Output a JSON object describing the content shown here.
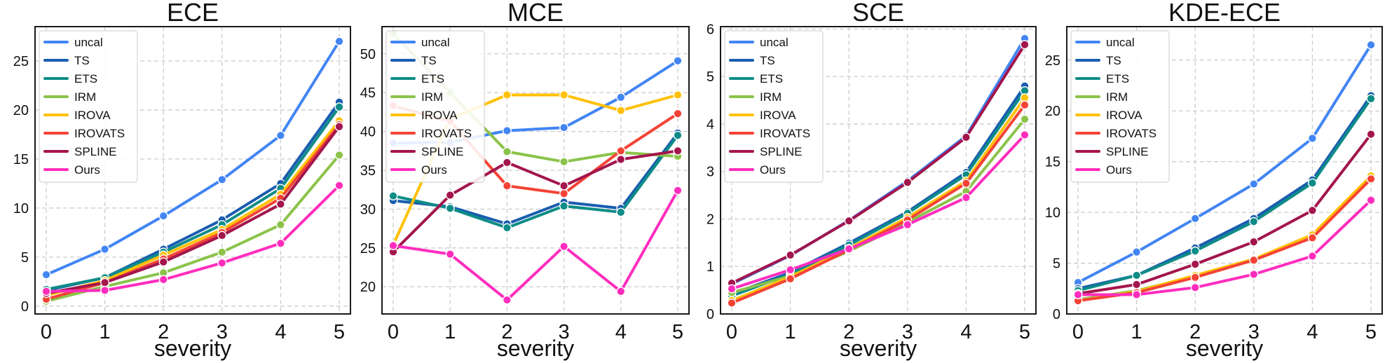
{
  "figure": {
    "series_colors": {
      "uncal": "#4285f4",
      "TS": "#1a5db0",
      "ETS": "#0e8c87",
      "IRM": "#8bc34a",
      "IROVA": "#ffc107",
      "IROVATS": "#f44336",
      "SPLINE": "#a3154d",
      "Ours": "#ff2dbe"
    }
  },
  "chart_data": [
    {
      "type": "line",
      "title": "ECE",
      "xlabel": "severity",
      "ylabel": "",
      "x": [
        0,
        1,
        2,
        3,
        4,
        5
      ],
      "ylim": [
        -0.8,
        28.5
      ],
      "yticks": [
        0,
        5,
        10,
        15,
        20,
        25
      ],
      "legend": "top-left",
      "grid": true,
      "series": [
        {
          "name": "uncal",
          "values": [
            3.2,
            5.8,
            9.2,
            12.9,
            17.4,
            27.0
          ]
        },
        {
          "name": "TS",
          "values": [
            1.6,
            2.9,
            5.8,
            8.8,
            12.5,
            20.8
          ]
        },
        {
          "name": "ETS",
          "values": [
            1.7,
            2.9,
            5.5,
            8.3,
            12.0,
            20.3
          ]
        },
        {
          "name": "IRM",
          "values": [
            0.5,
            2.0,
            3.4,
            5.5,
            8.3,
            15.4
          ]
        },
        {
          "name": "IROVA",
          "values": [
            1.1,
            2.6,
            5.2,
            7.8,
            11.4,
            18.9
          ]
        },
        {
          "name": "IROVATS",
          "values": [
            0.7,
            2.4,
            4.8,
            7.5,
            11.0,
            18.5
          ]
        },
        {
          "name": "SPLINE",
          "values": [
            1.3,
            2.4,
            4.5,
            7.2,
            10.4,
            18.3
          ]
        },
        {
          "name": "Ours",
          "values": [
            1.5,
            1.6,
            2.7,
            4.4,
            6.4,
            12.3
          ]
        }
      ]
    },
    {
      "type": "line",
      "title": "MCE",
      "xlabel": "severity",
      "ylabel": "",
      "x": [
        0,
        1,
        2,
        3,
        4,
        5
      ],
      "ylim": [
        16.5,
        53.5
      ],
      "yticks": [
        20,
        25,
        30,
        35,
        40,
        45,
        50
      ],
      "legend": "top-left",
      "grid": true,
      "series": [
        {
          "name": "uncal",
          "values": [
            38.5,
            38.6,
            40.1,
            40.5,
            44.4,
            49.1
          ]
        },
        {
          "name": "TS",
          "values": [
            31.1,
            30.3,
            28.1,
            30.9,
            30.1,
            39.8
          ]
        },
        {
          "name": "ETS",
          "values": [
            31.7,
            30.1,
            27.6,
            30.4,
            29.6,
            39.5
          ]
        },
        {
          "name": "IRM",
          "values": [
            52.6,
            45.0,
            37.4,
            36.1,
            37.3,
            36.8
          ]
        },
        {
          "name": "IROVA",
          "values": [
            25.4,
            41.6,
            44.7,
            44.7,
            42.7,
            44.7
          ]
        },
        {
          "name": "IROVATS",
          "values": [
            43.3,
            41.3,
            33.0,
            32.0,
            37.5,
            42.3
          ]
        },
        {
          "name": "SPLINE",
          "values": [
            24.5,
            31.8,
            36.0,
            33.0,
            36.4,
            37.5
          ]
        },
        {
          "name": "Ours",
          "values": [
            25.3,
            24.2,
            18.3,
            25.2,
            19.4,
            32.4
          ]
        }
      ]
    },
    {
      "type": "line",
      "title": "SCE",
      "xlabel": "severity",
      "ylabel": "",
      "x": [
        0,
        1,
        2,
        3,
        4,
        5
      ],
      "ylim": [
        0,
        6.05
      ],
      "yticks": [
        0,
        1,
        2,
        3,
        4,
        5,
        6
      ],
      "legend": "top-left",
      "grid": true,
      "series": [
        {
          "name": "uncal",
          "values": [
            0.63,
            1.23,
            1.97,
            2.8,
            3.75,
            5.8
          ]
        },
        {
          "name": "TS",
          "values": [
            0.42,
            0.87,
            1.49,
            2.15,
            2.98,
            4.8
          ]
        },
        {
          "name": "ETS",
          "values": [
            0.38,
            0.84,
            1.45,
            2.12,
            2.93,
            4.7
          ]
        },
        {
          "name": "IRM",
          "values": [
            0.45,
            0.8,
            1.32,
            1.93,
            2.58,
            4.1
          ]
        },
        {
          "name": "IROVA",
          "values": [
            0.28,
            0.78,
            1.38,
            2.03,
            2.8,
            4.55
          ]
        },
        {
          "name": "IROVATS",
          "values": [
            0.23,
            0.74,
            1.35,
            1.98,
            2.75,
            4.4
          ]
        },
        {
          "name": "SPLINE",
          "values": [
            0.65,
            1.24,
            1.96,
            2.77,
            3.72,
            5.67
          ]
        },
        {
          "name": "Ours",
          "values": [
            0.53,
            0.93,
            1.37,
            1.88,
            2.45,
            3.77
          ]
        }
      ]
    },
    {
      "type": "line",
      "title": "KDE-ECE",
      "xlabel": "severity",
      "ylabel": "",
      "x": [
        0,
        1,
        2,
        3,
        4,
        5
      ],
      "ylim": [
        0,
        28.3
      ],
      "yticks": [
        0,
        5,
        10,
        15,
        20,
        25
      ],
      "legend": "top-left",
      "grid": true,
      "series": [
        {
          "name": "uncal",
          "values": [
            3.1,
            6.1,
            9.4,
            12.8,
            17.3,
            26.5
          ]
        },
        {
          "name": "TS",
          "values": [
            2.5,
            3.8,
            6.5,
            9.4,
            13.2,
            21.5
          ]
        },
        {
          "name": "ETS",
          "values": [
            2.3,
            3.8,
            6.2,
            9.1,
            12.9,
            21.2
          ]
        },
        {
          "name": "IRM",
          "values": [
            1.4,
            2.3,
            3.7,
            5.4,
            7.7,
            13.5
          ]
        },
        {
          "name": "IROVA",
          "values": [
            1.3,
            2.2,
            3.8,
            5.4,
            7.8,
            13.6
          ]
        },
        {
          "name": "IROVATS",
          "values": [
            1.3,
            2.1,
            3.6,
            5.3,
            7.5,
            13.3
          ]
        },
        {
          "name": "SPLINE",
          "values": [
            2.0,
            2.9,
            4.9,
            7.1,
            10.2,
            17.7
          ]
        },
        {
          "name": "Ours",
          "values": [
            1.9,
            1.9,
            2.6,
            3.9,
            5.7,
            11.2
          ]
        }
      ]
    }
  ]
}
